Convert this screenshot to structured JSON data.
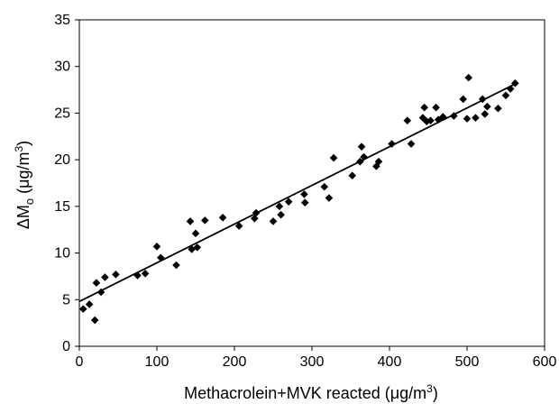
{
  "chart_data": {
    "type": "scatter",
    "xlabel_parts": {
      "main": "Methacrolein+MVK reacted (μg/m",
      "sup": "3",
      "end": ")"
    },
    "ylabel_parts": {
      "delta": "ΔM",
      "sub": "o",
      "mid": " (μg/m",
      "sup": "3",
      "end": ")"
    },
    "xlim": [
      0,
      600
    ],
    "ylim": [
      0,
      35
    ],
    "xticks": [
      "0",
      "100",
      "200",
      "300",
      "400",
      "500",
      "600"
    ],
    "yticks": [
      "0",
      "5",
      "10",
      "15",
      "20",
      "25",
      "30",
      "35"
    ],
    "grid": false,
    "legend": "none",
    "marker_color": "#000000",
    "trendline": {
      "intercept": 4.8,
      "slope": 0.0415,
      "x_range": [
        0,
        563
      ]
    },
    "points": [
      [
        5,
        4.0
      ],
      [
        13,
        4.5
      ],
      [
        20,
        2.8
      ],
      [
        22,
        6.8
      ],
      [
        28,
        5.8
      ],
      [
        33,
        7.4
      ],
      [
        47,
        7.7
      ],
      [
        75,
        7.6
      ],
      [
        85,
        7.8
      ],
      [
        100,
        10.7
      ],
      [
        105,
        9.5
      ],
      [
        125,
        8.7
      ],
      [
        143,
        13.4
      ],
      [
        145,
        10.4
      ],
      [
        150,
        12.1
      ],
      [
        152,
        10.6
      ],
      [
        162,
        13.5
      ],
      [
        185,
        13.8
      ],
      [
        206,
        12.9
      ],
      [
        226,
        13.7
      ],
      [
        228,
        14.3
      ],
      [
        250,
        13.4
      ],
      [
        258,
        15.0
      ],
      [
        260,
        14.1
      ],
      [
        270,
        15.5
      ],
      [
        290,
        16.3
      ],
      [
        291,
        15.4
      ],
      [
        316,
        17.1
      ],
      [
        322,
        15.9
      ],
      [
        328,
        20.2
      ],
      [
        352,
        18.3
      ],
      [
        362,
        19.8
      ],
      [
        364,
        21.4
      ],
      [
        367,
        20.3
      ],
      [
        383,
        19.3
      ],
      [
        386,
        19.8
      ],
      [
        403,
        21.7
      ],
      [
        423,
        24.2
      ],
      [
        428,
        21.7
      ],
      [
        443,
        24.5
      ],
      [
        445,
        25.6
      ],
      [
        448,
        24.1
      ],
      [
        453,
        24.2
      ],
      [
        460,
        25.6
      ],
      [
        463,
        24.3
      ],
      [
        469,
        24.6
      ],
      [
        483,
        24.7
      ],
      [
        495,
        26.5
      ],
      [
        500,
        24.4
      ],
      [
        502,
        28.8
      ],
      [
        511,
        24.5
      ],
      [
        520,
        26.5
      ],
      [
        523,
        24.9
      ],
      [
        526,
        25.7
      ],
      [
        540,
        25.5
      ],
      [
        550,
        26.9
      ],
      [
        556,
        27.6
      ],
      [
        562,
        28.2
      ]
    ]
  }
}
